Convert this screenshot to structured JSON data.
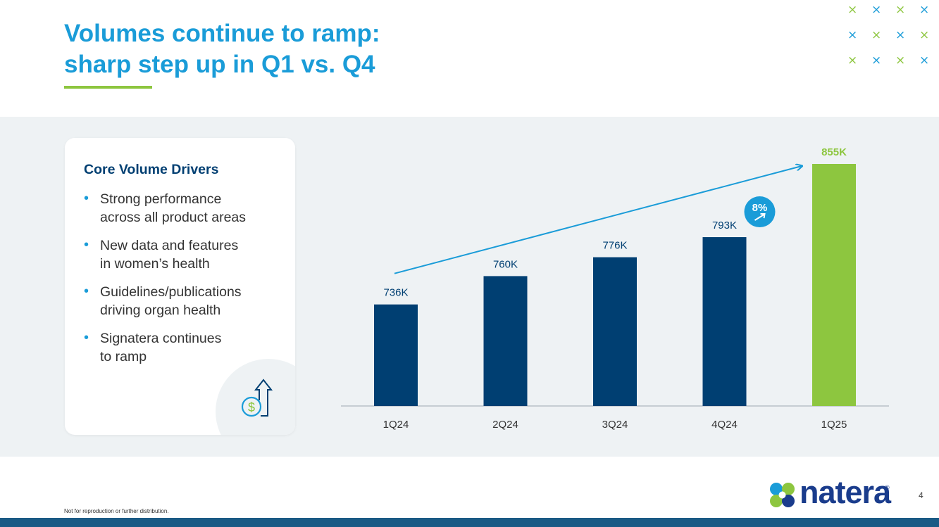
{
  "slide": {
    "title_line1": "Volumes continue to ramp:",
    "title_line2": "sharp step up in Q1 vs. Q4",
    "page_number": "4",
    "footer_note": "Not for reproduction or further distribution.",
    "logo_text": "natera",
    "logo_reg": "®"
  },
  "colors": {
    "title": "#1A9CD8",
    "accent_green": "#8DC63F",
    "navy": "#003F72",
    "highlight_bar": "#8DC63F",
    "panel_bg": "#EEF2F4",
    "arrow": "#1A9CD8"
  },
  "decor": {
    "x_glyph": "×"
  },
  "drivers": {
    "title": "Core Volume Drivers",
    "bullets": [
      "Strong performance\nacross all product areas",
      "New data and features\nin women’s health",
      "Guidelines/publications\ndriving organ health",
      "Signatera continues\nto ramp"
    ],
    "icon": "dollar-up-arrow-icon"
  },
  "chart_data": {
    "type": "bar",
    "categories": [
      "1Q24",
      "2Q24",
      "3Q24",
      "4Q24",
      "1Q25"
    ],
    "values": [
      736,
      760,
      776,
      793,
      855
    ],
    "value_labels": [
      "736K",
      "760K",
      "776K",
      "793K",
      "855K"
    ],
    "units": "K",
    "highlight_index": 4,
    "ylim": [
      650,
      870
    ],
    "title": "",
    "xlabel": "",
    "ylabel": "",
    "grid": false,
    "trend_annotation": {
      "label": "8%",
      "icon": "trend-up-arrow-icon"
    }
  }
}
